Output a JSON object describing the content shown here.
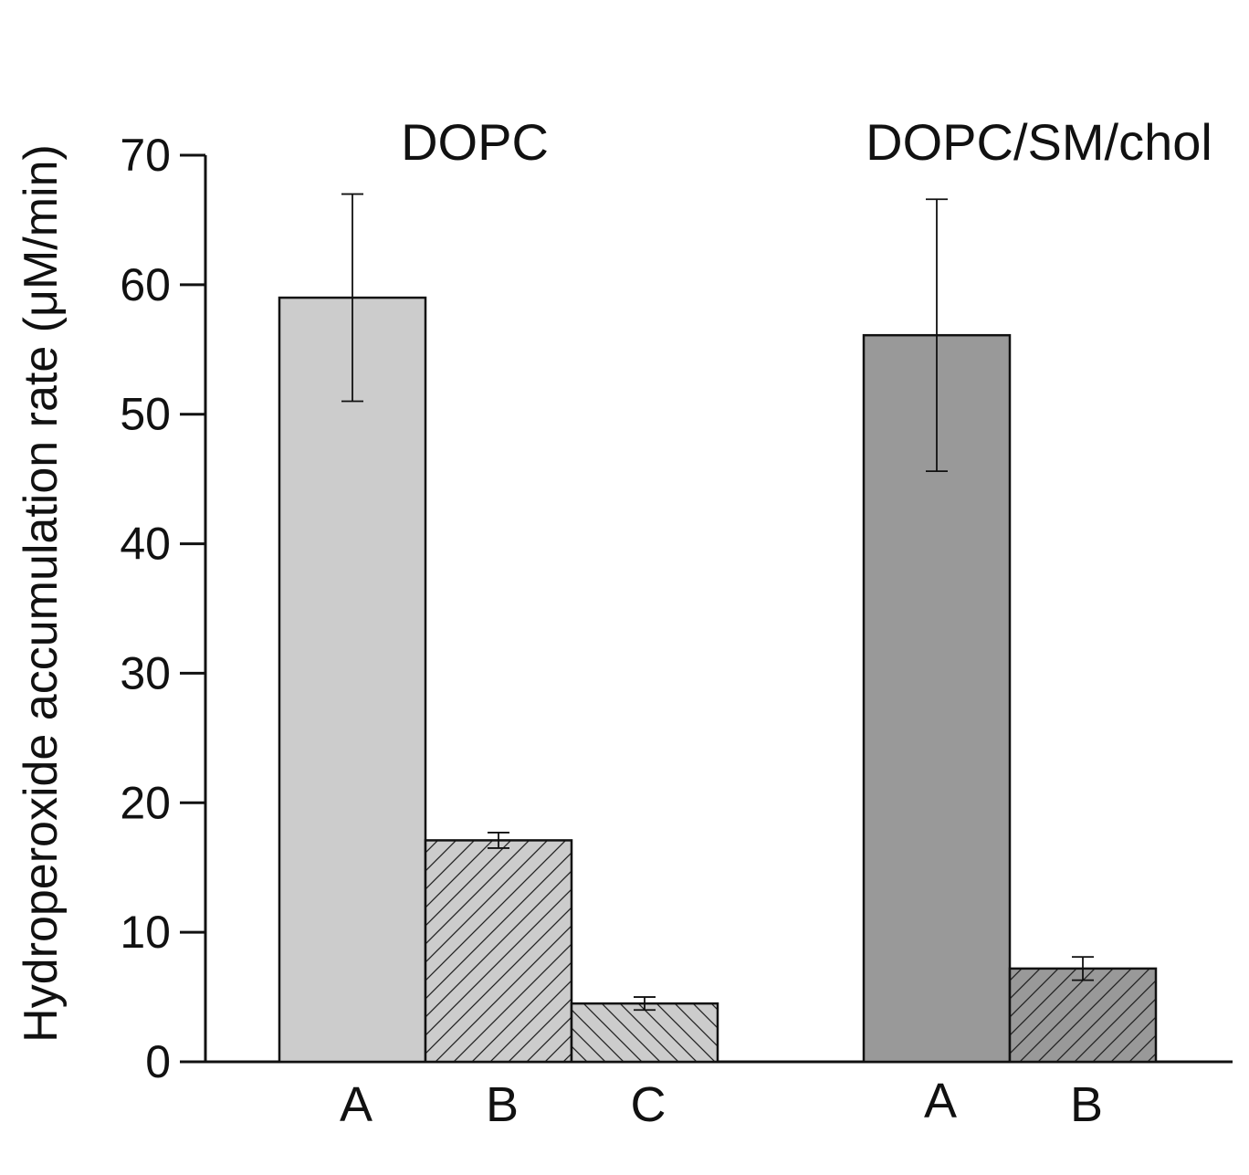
{
  "chart_data": {
    "type": "bar",
    "ylabel": "Hydroperoxide accumulation rate (μM/min)",
    "ylim": [
      0,
      70
    ],
    "yticks": [
      0,
      10,
      20,
      30,
      40,
      50,
      60,
      70
    ],
    "ytick_labels": [
      "0",
      "10",
      "20",
      "30",
      "40",
      "50",
      "60",
      "70"
    ],
    "grid": false,
    "groups": [
      {
        "name": "DOPC",
        "bars": [
          {
            "category": "A",
            "value": 59.0,
            "error": 8.0,
            "fill": "#cccccc",
            "pattern": "none"
          },
          {
            "category": "B",
            "value": 17.1,
            "error": 0.6,
            "fill": "#cccccc",
            "pattern": "hatch-forward"
          },
          {
            "category": "C",
            "value": 4.5,
            "error": 0.5,
            "fill": "#cccccc",
            "pattern": "hatch-back"
          }
        ]
      },
      {
        "name": "DOPC/SM/chol",
        "bars": [
          {
            "category": "A",
            "value": 56.1,
            "error": 10.5,
            "fill": "#999999",
            "pattern": "none"
          },
          {
            "category": "B",
            "value": 7.2,
            "error": 0.9,
            "fill": "#999999",
            "pattern": "hatch-forward"
          }
        ]
      }
    ]
  }
}
